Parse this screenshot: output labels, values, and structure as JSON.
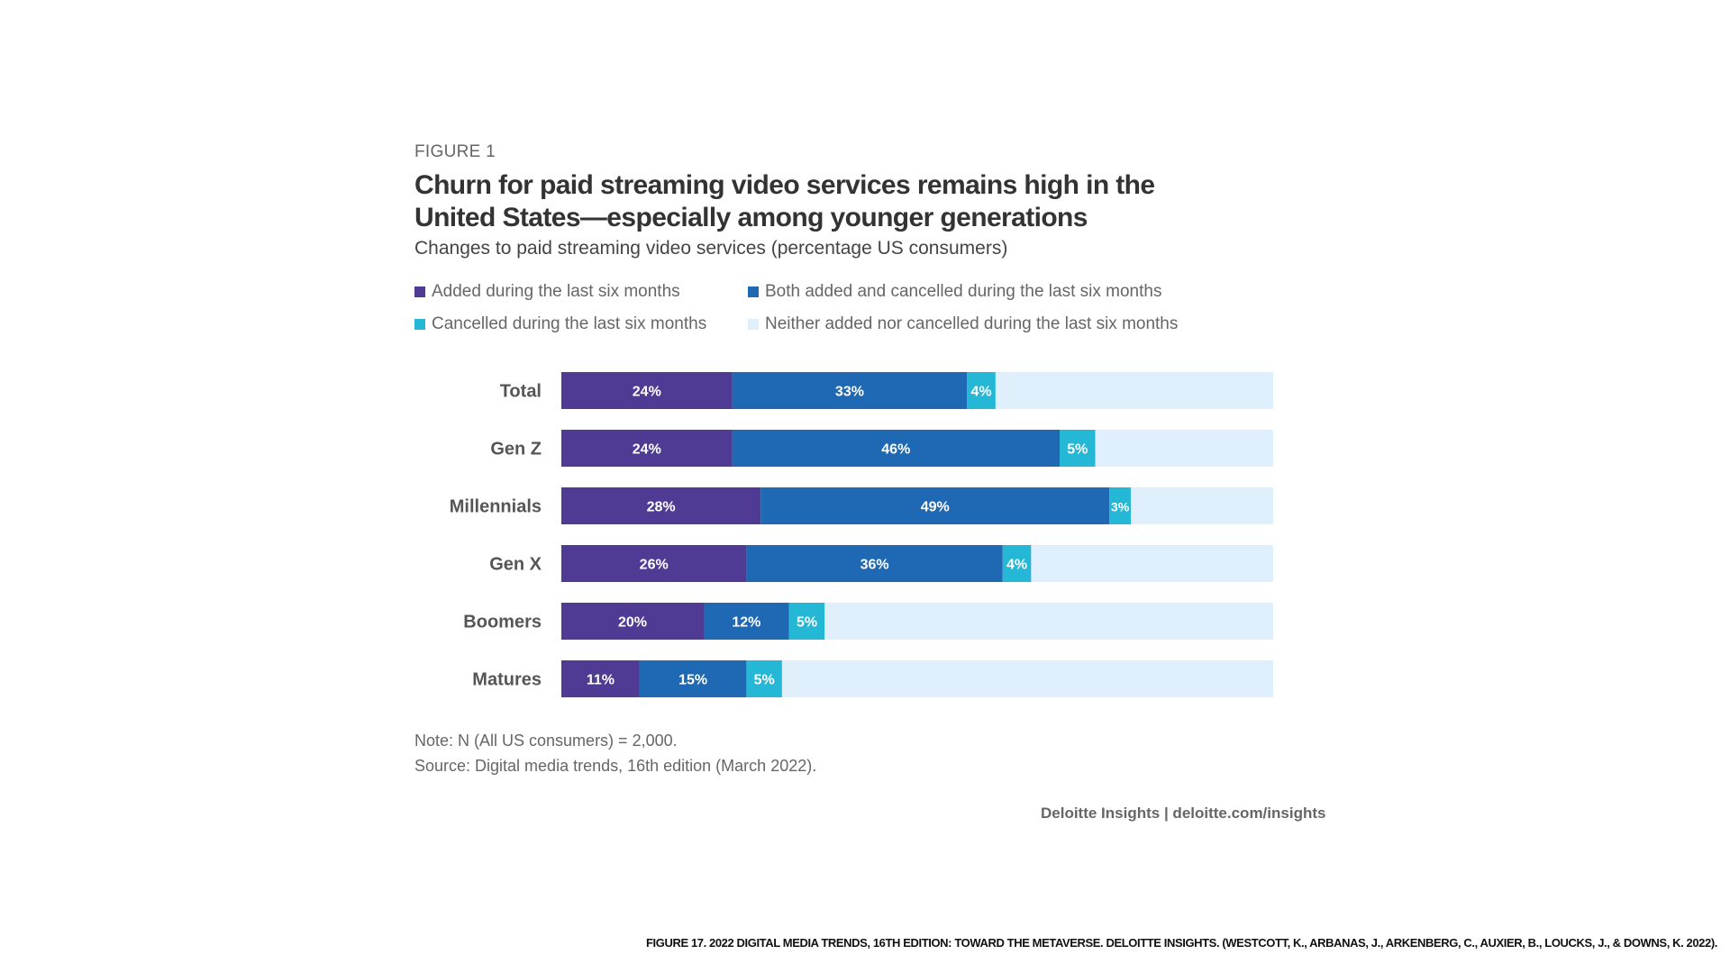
{
  "figure_label": "FIGURE 1",
  "colors": {
    "added": "#4f3b93",
    "both": "#1f69b4",
    "cancelled": "#24b8d6",
    "neither": "#dfeffb",
    "label_text": "#ffffff",
    "category_text": "#555555"
  },
  "legend": [
    {
      "key": "added",
      "label": "Added during the last six months"
    },
    {
      "key": "both",
      "label": "Both added and cancelled during the last six months"
    },
    {
      "key": "cancelled",
      "label": "Cancelled during the last six months"
    },
    {
      "key": "neither",
      "label": "Neither added nor cancelled during the last six months"
    }
  ],
  "chart_data": {
    "type": "bar",
    "orientation": "horizontal",
    "stacked": true,
    "title": "Churn for paid streaming video services remains high in the United States—especially among younger generations",
    "subtitle": "Changes to paid streaming video services (percentage US consumers)",
    "categories": [
      "Total",
      "Gen Z",
      "Millennials",
      "Gen X",
      "Boomers",
      "Matures"
    ],
    "series": [
      {
        "key": "added",
        "name": "Added during the last six months",
        "values": [
          24,
          24,
          28,
          26,
          20,
          11
        ],
        "labels": [
          "24%",
          "24%",
          "28%",
          "26%",
          "20%",
          "11%"
        ]
      },
      {
        "key": "both",
        "name": "Both added and cancelled during the last six months",
        "values": [
          33,
          46,
          49,
          36,
          12,
          15
        ],
        "labels": [
          "33%",
          "46%",
          "49%",
          "36%",
          "12%",
          "15%"
        ]
      },
      {
        "key": "cancelled",
        "name": "Cancelled during the last six months",
        "values": [
          4,
          5,
          3,
          4,
          5,
          5
        ],
        "labels": [
          "4%",
          "5%",
          "3%",
          "4%",
          "5%",
          "5%"
        ]
      },
      {
        "key": "neither",
        "name": "Neither added nor cancelled during the last six months",
        "values": [
          39,
          25,
          20,
          34,
          63,
          69
        ],
        "labels": [
          "",
          "",
          "",
          "",
          "",
          ""
        ]
      }
    ],
    "xlim": [
      0,
      100
    ],
    "xlabel": "",
    "ylabel": "",
    "legend_position": "top-left",
    "grid": false
  },
  "notes": {
    "note": "Note: N (All US consumers) = 2,000.",
    "source": "Source: Digital media trends, 16th edition (March 2022)."
  },
  "brand": "Deloitte Insights | deloitte.com/insights",
  "citation": "FIGURE 17. 2022 DIGITAL MEDIA TRENDS, 16TH EDITION: TOWARD THE METAVERSE. DELOITTE INSIGHTS. (WESTCOTT, K., ARBANAS, J., ARKENBERG, C., AUXIER, B., LOUCKS, J., & DOWNS, K. 2022)."
}
